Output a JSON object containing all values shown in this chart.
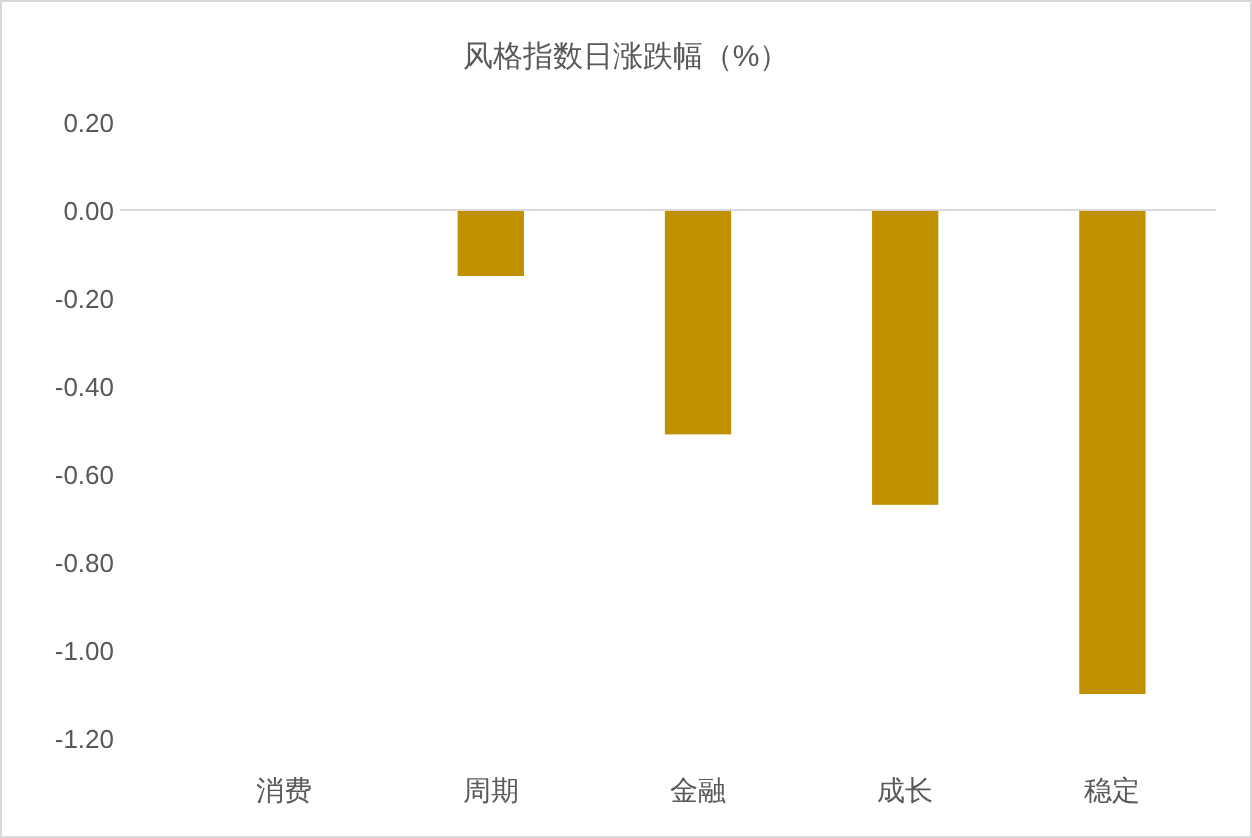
{
  "chart_data": {
    "type": "bar",
    "title": "风格指数日涨跌幅（%）",
    "categories": [
      "消费",
      "周期",
      "金融",
      "成长",
      "稳定"
    ],
    "values": [
      0,
      -0.15,
      -0.51,
      -0.67,
      -1.1
    ],
    "color": "#bf9000",
    "ylim": [
      -1.2,
      0.2
    ],
    "yticks": [
      {
        "value": 0.2,
        "label": "0.20"
      },
      {
        "value": 0,
        "label": "0.00"
      },
      {
        "value": -0.2,
        "label": "-0.20"
      },
      {
        "value": -0.4,
        "label": "-0.40"
      },
      {
        "value": -0.6,
        "label": "-0.60"
      },
      {
        "value": -0.8,
        "label": "-0.80"
      },
      {
        "value": -1.0,
        "label": "-1.00"
      },
      {
        "value": -1.2,
        "label": "-1.20"
      }
    ]
  }
}
